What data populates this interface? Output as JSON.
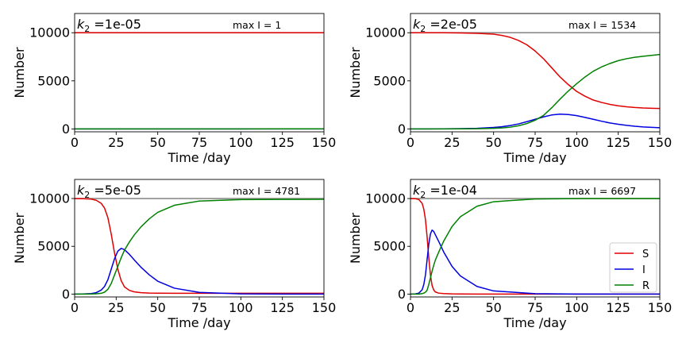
{
  "figure": {
    "background": "#ffffff"
  },
  "chart_data": [
    {
      "type": "line",
      "title_prefix": "k",
      "title_subscript": "2",
      "title_value": " =1e-05",
      "annotation": "max I = 1",
      "xlabel": "Time /day",
      "ylabel": "Number",
      "xlim": [
        0,
        150
      ],
      "ylim": [
        -300,
        12000
      ],
      "xticks": [
        "0",
        "25",
        "50",
        "75",
        "100",
        "125",
        "150"
      ],
      "yticks": [
        "0",
        "5000",
        "10000"
      ],
      "reference_line": 10000,
      "series": [
        {
          "name": "S",
          "color": "#e00000",
          "x": [
            0,
            25,
            50,
            75,
            100,
            125,
            150
          ],
          "y": [
            9999,
            9999,
            9999,
            9999,
            9999,
            9999,
            9999
          ]
        },
        {
          "name": "I",
          "color": "#0000e0",
          "x": [
            0,
            25,
            50,
            75,
            100,
            125,
            150
          ],
          "y": [
            1,
            1,
            1,
            1,
            1,
            1,
            1
          ]
        },
        {
          "name": "R",
          "color": "#008000",
          "x": [
            0,
            25,
            50,
            75,
            100,
            125,
            150
          ],
          "y": [
            0,
            1,
            2,
            3,
            4,
            5,
            6
          ]
        }
      ]
    },
    {
      "type": "line",
      "title_prefix": "k",
      "title_subscript": "2",
      "title_value": " =2e-05",
      "annotation": "max I = 1534",
      "xlabel": "Time /day",
      "ylabel": "Number",
      "xlim": [
        0,
        150
      ],
      "ylim": [
        -300,
        12000
      ],
      "xticks": [
        "0",
        "25",
        "50",
        "75",
        "100",
        "125",
        "150"
      ],
      "yticks": [
        "0",
        "5000",
        "10000"
      ],
      "reference_line": 10000,
      "series": [
        {
          "name": "S",
          "color": "#e00000",
          "x": [
            0,
            10,
            20,
            30,
            40,
            50,
            55,
            60,
            65,
            70,
            75,
            80,
            85,
            90,
            95,
            100,
            105,
            110,
            115,
            120,
            125,
            130,
            135,
            140,
            145,
            150
          ],
          "y": [
            9999,
            9998,
            9995,
            9980,
            9940,
            9850,
            9720,
            9520,
            9200,
            8750,
            8100,
            7300,
            6350,
            5400,
            4600,
            3900,
            3400,
            3000,
            2750,
            2550,
            2400,
            2300,
            2230,
            2180,
            2150,
            2120
          ]
        },
        {
          "name": "I",
          "color": "#0000e0",
          "x": [
            0,
            10,
            20,
            30,
            40,
            50,
            55,
            60,
            65,
            70,
            75,
            80,
            85,
            90,
            95,
            100,
            105,
            110,
            115,
            120,
            125,
            130,
            135,
            140,
            145,
            150
          ],
          "y": [
            1,
            3,
            8,
            25,
            60,
            150,
            230,
            350,
            520,
            750,
            1000,
            1250,
            1450,
            1534,
            1500,
            1380,
            1200,
            1000,
            800,
            620,
            480,
            370,
            280,
            210,
            160,
            120
          ]
        },
        {
          "name": "R",
          "color": "#008000",
          "x": [
            0,
            10,
            20,
            30,
            40,
            50,
            55,
            60,
            65,
            70,
            75,
            80,
            85,
            90,
            95,
            100,
            105,
            110,
            115,
            120,
            125,
            130,
            135,
            140,
            145,
            150
          ],
          "y": [
            0,
            0,
            2,
            5,
            20,
            60,
            100,
            180,
            330,
            550,
            900,
            1400,
            2200,
            3100,
            3950,
            4700,
            5400,
            6000,
            6450,
            6800,
            7100,
            7300,
            7450,
            7550,
            7650,
            7740
          ]
        }
      ]
    },
    {
      "type": "line",
      "title_prefix": "k",
      "title_subscript": "2",
      "title_value": " =5e-05",
      "annotation": "max I = 4781",
      "xlabel": "Time /day",
      "ylabel": "Number",
      "xlim": [
        0,
        150
      ],
      "ylim": [
        -300,
        12000
      ],
      "xticks": [
        "0",
        "25",
        "50",
        "75",
        "100",
        "125",
        "150"
      ],
      "yticks": [
        "0",
        "5000",
        "10000"
      ],
      "reference_line": 10000,
      "series": [
        {
          "name": "S",
          "color": "#e00000",
          "x": [
            0,
            5,
            10,
            13,
            16,
            18,
            20,
            22,
            24,
            26,
            28,
            30,
            33,
            36,
            40,
            45,
            50,
            60,
            75,
            100,
            125,
            150
          ],
          "y": [
            9999,
            9990,
            9940,
            9820,
            9500,
            9000,
            8000,
            6300,
            4300,
            2600,
            1400,
            750,
            380,
            230,
            150,
            110,
            95,
            85,
            80,
            80,
            80,
            80
          ]
        },
        {
          "name": "I",
          "color": "#0000e0",
          "x": [
            0,
            5,
            10,
            13,
            16,
            18,
            20,
            22,
            24,
            26,
            28,
            30,
            33,
            36,
            40,
            45,
            50,
            60,
            75,
            100,
            125,
            150
          ],
          "y": [
            1,
            8,
            50,
            150,
            420,
            800,
            1500,
            2600,
            3700,
            4500,
            4781,
            4650,
            4150,
            3550,
            2800,
            2000,
            1350,
            620,
            180,
            25,
            5,
            1
          ]
        },
        {
          "name": "R",
          "color": "#008000",
          "x": [
            0,
            5,
            10,
            13,
            16,
            18,
            20,
            22,
            24,
            26,
            28,
            30,
            33,
            36,
            40,
            45,
            50,
            60,
            75,
            100,
            125,
            150
          ],
          "y": [
            0,
            2,
            10,
            30,
            80,
            200,
            500,
            1100,
            2000,
            2900,
            3800,
            4600,
            5470,
            6220,
            7050,
            7890,
            8555,
            9295,
            9740,
            9895,
            9915,
            9919
          ]
        }
      ]
    },
    {
      "type": "line",
      "title_prefix": "k",
      "title_subscript": "2",
      "title_value": " =1e-04",
      "annotation": "max I = 6697",
      "xlabel": "Time /day",
      "ylabel": "Number",
      "xlim": [
        0,
        150
      ],
      "ylim": [
        -300,
        12000
      ],
      "xticks": [
        "0",
        "25",
        "50",
        "75",
        "100",
        "125",
        "150"
      ],
      "yticks": [
        "0",
        "5000",
        "10000"
      ],
      "reference_line": 10000,
      "legend": {
        "position": "lower right",
        "entries": [
          "S",
          "I",
          "R"
        ]
      },
      "series": [
        {
          "name": "S",
          "color": "#e00000",
          "x": [
            0,
            3,
            5,
            7,
            8,
            9,
            10,
            11,
            12,
            13,
            14,
            15,
            17,
            20,
            25,
            30,
            40,
            50,
            75,
            100,
            150
          ],
          "y": [
            9999,
            9985,
            9900,
            9500,
            8900,
            7800,
            6000,
            3800,
            2000,
            900,
            420,
            220,
            100,
            50,
            20,
            10,
            5,
            3,
            2,
            2,
            2
          ]
        },
        {
          "name": "I",
          "color": "#0000e0",
          "x": [
            0,
            3,
            5,
            7,
            8,
            9,
            10,
            11,
            12,
            13,
            14,
            15,
            17,
            20,
            25,
            30,
            40,
            50,
            75,
            100,
            150
          ],
          "y": [
            1,
            20,
            100,
            450,
            1000,
            2000,
            3600,
            5200,
            6300,
            6697,
            6550,
            6200,
            5500,
            4400,
            2900,
            1900,
            800,
            330,
            40,
            5,
            0
          ]
        },
        {
          "name": "R",
          "color": "#008000",
          "x": [
            0,
            3,
            5,
            7,
            8,
            9,
            10,
            11,
            12,
            13,
            14,
            15,
            17,
            20,
            25,
            30,
            40,
            50,
            75,
            100,
            150
          ],
          "y": [
            0,
            0,
            0,
            50,
            100,
            200,
            400,
            1000,
            1700,
            2400,
            3030,
            3580,
            4400,
            5550,
            7080,
            8090,
            9195,
            9667,
            9958,
            9993,
            9998
          ]
        }
      ]
    }
  ]
}
